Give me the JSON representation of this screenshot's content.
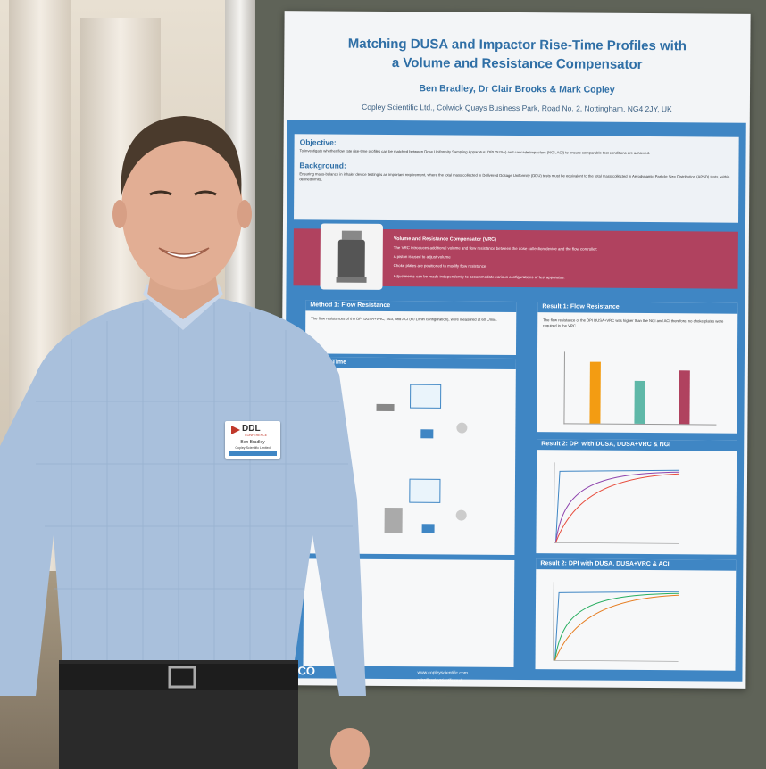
{
  "poster": {
    "title_line1": "Matching DUSA and Impactor Rise-Time Profiles with",
    "title_line2": "a Volume and Resistance Compensator",
    "authors": "Ben Bradley, Dr Clair Brooks & Mark Copley",
    "affiliation": "Copley Scientific Ltd., Colwick Quays Business Park, Road No. 2, Nottingham, NG4 2JY, UK",
    "objective": {
      "heading": "Objective:",
      "text": "To investigate whether flow rate rise-time profiles can be matched between Dose Uniformity Sampling Apparatus (DPI DUSA) and cascade impactors (NGI, ACI) to ensure comparable test conditions are achieved."
    },
    "background": {
      "heading": "Background:",
      "text": "Ensuring mass-balance in inhaler device testing is an important requirement, where the total mass collected in Delivered Dosage Uniformity (DDU) tests must be equivalent to the total mass collected in Aerodynamic Particle Size Distribution (APSD) tests, within defined limits."
    },
    "vrc": {
      "title": "Volume and Resistance Compensator (VRC)",
      "intro": "The VRC introduces additional volume and flow resistance between the dose collection device and the flow controller:",
      "bullet1": "A piston is used to adjust volume",
      "bullet2": "Choke plates are positioned to modify flow resistance",
      "outro": "Adjustments can be made independently to accommodate various configurations of test apparatus."
    },
    "method1": {
      "heading": "Method 1: Flow Resistance",
      "text": "The flow resistances of the DPI DUSA+VRC, NGI, and ACI (60 L/min configuration), were measured at 60 L/min."
    },
    "method2": {
      "heading": "2: Rise Time"
    },
    "result1": {
      "heading": "Result 1: Flow Resistance",
      "text": "The flow resistance of the DPI DUSA+VRC was higher than the NGI and ACI therefore, no choke plates were required in the VRC."
    },
    "result2a": {
      "heading": "Result 2: DPI with DUSA, DUSA+VRC & NGI"
    },
    "result2b": {
      "heading": "Result 2: DPI with DUSA, DUSA+VRC & ACI"
    },
    "footer_url": "www.copleyscientific.com",
    "footer_email": "sales@copleyscientific.co.uk",
    "footer_logo": "CO"
  },
  "badge": {
    "logo": "DDL",
    "logo_sub": "CONFERENCE",
    "name": "Ben Bradley",
    "org": "Copley Scientific Limited"
  },
  "chart_data": {
    "type": "bar",
    "categories": [
      "",
      "",
      ""
    ],
    "values": [
      5.2,
      3.6,
      4.5
    ],
    "colors": [
      "#f39c12",
      "#5fb8a8",
      "#b0425f"
    ]
  }
}
